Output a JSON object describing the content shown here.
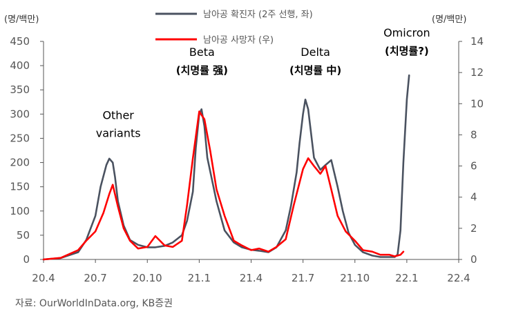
{
  "chart_data": {
    "type": "line",
    "title": "",
    "y_left_unit": "(명/백만)",
    "y_right_unit": "(명/백만)",
    "x_ticks": [
      "20.4",
      "20.7",
      "20.10",
      "21.1",
      "21.4",
      "21.7",
      "21.10",
      "22.1",
      "22.4"
    ],
    "y_left_ticks": [
      "0",
      "50",
      "100",
      "150",
      "200",
      "250",
      "300",
      "350",
      "400",
      "450"
    ],
    "y_right_ticks": [
      "0",
      "2",
      "4",
      "6",
      "8",
      "10",
      "12",
      "14"
    ],
    "ylim_left": [
      0,
      450
    ],
    "ylim_right": [
      0,
      14
    ],
    "x_months_axis": [
      "20.4",
      "22.4"
    ],
    "source": "자료: OurWorldInData.org, KB증권",
    "series": [
      {
        "name": "남아공 확진자 (2주 선행, 좌)",
        "axis": "left",
        "color": "#4a5260",
        "x": [
          "20.4",
          "20.5",
          "20.6",
          "20.6.15",
          "20.7",
          "20.7.10",
          "20.7.20",
          "20.7.25",
          "20.8",
          "20.8.5",
          "20.8.10",
          "20.8.20",
          "20.9",
          "20.9.15",
          "20.10",
          "20.10.15",
          "20.11",
          "20.11.15",
          "20.12",
          "20.12.10",
          "20.12.20",
          "20.12.25",
          "21.1",
          "21.1.5",
          "21.1.10",
          "21.1.15",
          "21.2",
          "21.2.15",
          "21.3",
          "21.3.15",
          "21.4",
          "21.4.15",
          "21.5",
          "21.5.15",
          "21.6",
          "21.6.10",
          "21.6.20",
          "21.6.25",
          "21.7",
          "21.7.5",
          "21.7.10",
          "21.7.20",
          "21.8",
          "21.8.10",
          "21.8.20",
          "21.9",
          "21.9.10",
          "21.9.20",
          "21.10",
          "21.10.15",
          "21.11",
          "21.11.15",
          "21.12",
          "21.12.5",
          "21.12.10",
          "21.12.15",
          "21.12.20",
          "21.12.25",
          "22.1",
          "22.1.5"
        ],
        "values": [
          0,
          3,
          15,
          40,
          90,
          150,
          195,
          208,
          200,
          170,
          120,
          70,
          40,
          30,
          25,
          25,
          28,
          35,
          50,
          80,
          140,
          230,
          300,
          310,
          275,
          210,
          120,
          60,
          35,
          25,
          20,
          18,
          15,
          25,
          60,
          110,
          180,
          240,
          300,
          330,
          310,
          210,
          185,
          195,
          205,
          150,
          100,
          55,
          30,
          15,
          8,
          5,
          5,
          5,
          5,
          10,
          60,
          200,
          330,
          380
        ]
      },
      {
        "name": "남아공 사망자 (우)",
        "axis": "right",
        "color": "#ff0000",
        "x": [
          "20.4",
          "20.5",
          "20.6",
          "20.6.15",
          "20.7",
          "20.7.15",
          "20.7.25",
          "20.8",
          "20.8.10",
          "20.8.20",
          "20.9",
          "20.9.15",
          "20.10",
          "20.10.15",
          "20.11",
          "20.11.15",
          "20.12",
          "20.12.10",
          "20.12.20",
          "21.1",
          "21.1.10",
          "21.1.20",
          "21.2",
          "21.2.15",
          "21.3",
          "21.3.15",
          "21.4",
          "21.4.15",
          "21.5",
          "21.5.15",
          "21.6",
          "21.6.15",
          "21.7",
          "21.7.10",
          "21.7.20",
          "21.8",
          "21.8.10",
          "21.8.20",
          "21.9",
          "21.9.15",
          "21.10",
          "21.10.15",
          "21.11",
          "21.11.15",
          "21.12",
          "21.12.10",
          "21.12.20",
          "21.12.25"
        ],
        "values": [
          0,
          0.1,
          0.6,
          1.2,
          1.8,
          3.0,
          4.2,
          4.8,
          3.4,
          2.0,
          1.2,
          0.7,
          0.8,
          1.5,
          0.9,
          0.8,
          1.2,
          3.5,
          6.5,
          9.5,
          9.0,
          7.0,
          4.5,
          2.8,
          1.2,
          0.9,
          0.6,
          0.7,
          0.5,
          0.8,
          1.3,
          3.5,
          5.8,
          6.5,
          6.0,
          5.5,
          6.0,
          4.5,
          2.8,
          1.8,
          1.2,
          0.6,
          0.5,
          0.3,
          0.3,
          0.2,
          0.3,
          0.5
        ]
      }
    ],
    "annotations": [
      {
        "lines": [
          "Other",
          "variants"
        ],
        "style": "normal",
        "at_x": "20.8",
        "at_y": 290
      },
      {
        "lines": [
          "Beta",
          "(치명률 强)"
        ],
        "style": "mixed",
        "at_x": "21.1",
        "at_y": 420
      },
      {
        "lines": [
          "Delta",
          "(치명률 中)"
        ],
        "style": "mixed",
        "at_x": "21.7",
        "at_y": 420
      },
      {
        "lines": [
          "Omicron",
          "(치명률?)"
        ],
        "style": "mixed",
        "at_x": "22.1",
        "at_y": 460
      }
    ]
  }
}
